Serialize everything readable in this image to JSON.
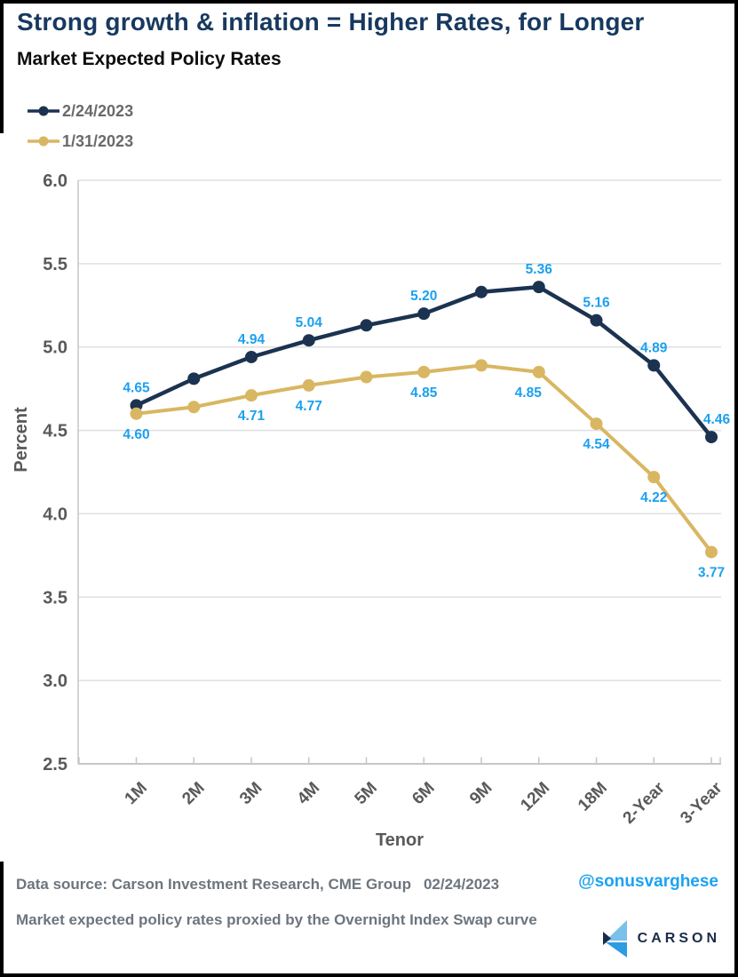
{
  "header": {
    "title": "Strong growth & inflation = Higher Rates, for Longer",
    "subtitle": "Market Expected Policy Rates"
  },
  "legend": [
    {
      "label": "2/24/2023",
      "color": "#1b3350"
    },
    {
      "label": "1/31/2023",
      "color": "#d9b661"
    }
  ],
  "chart_data": {
    "type": "line",
    "title": "Market Expected Policy Rates",
    "x": [
      "1M",
      "2M",
      "3M",
      "4M",
      "5M",
      "6M",
      "9M",
      "12M",
      "18M",
      "2-Year",
      "3-Year"
    ],
    "series": [
      {
        "name": "2/24/2023",
        "color": "#1b3350",
        "values": [
          4.65,
          4.81,
          4.94,
          5.04,
          5.13,
          5.2,
          5.33,
          5.36,
          5.16,
          4.89,
          4.46
        ],
        "labels": [
          "4.65",
          null,
          "4.94",
          "5.04",
          null,
          "5.20",
          null,
          "5.36",
          "5.16",
          "4.89",
          "4.46"
        ]
      },
      {
        "name": "1/31/2023",
        "color": "#d9b661",
        "values": [
          4.6,
          4.64,
          4.71,
          4.77,
          4.82,
          4.85,
          4.89,
          4.85,
          4.54,
          4.22,
          3.77
        ],
        "labels": [
          "4.60",
          null,
          "4.71",
          "4.77",
          null,
          "4.85",
          null,
          "4.85",
          "4.54",
          "4.22",
          "3.77"
        ]
      }
    ],
    "xlabel": "Tenor",
    "ylabel": "Percent",
    "ylim": [
      2.5,
      6.0
    ],
    "ytick_step": 0.5,
    "yticks": [
      "6.0",
      "5.5",
      "5.0",
      "4.5",
      "4.0",
      "3.5",
      "3.0",
      "2.5"
    ],
    "grid": true,
    "legend_position": "top-left",
    "label_color": "#1ba0f0",
    "grid_color": "#dfdfdf",
    "axis_color": "#c6c6c6",
    "tick_text_color": "#595959"
  },
  "footer": {
    "source": "Data source: Carson Investment Research, CME Group",
    "date": "02/24/2023",
    "note": "Market expected policy rates proxied by the Overnight Index Swap curve",
    "handle": "@sonusvarghese",
    "brand": "CARSON"
  },
  "colors": {
    "title_navy": "#17395f",
    "handle_blue": "#1da2f2",
    "brand_navy": "#1b2b4b",
    "logo_light_blue": "#7ac0ea",
    "logo_mid_blue": "#2e9ce2"
  }
}
